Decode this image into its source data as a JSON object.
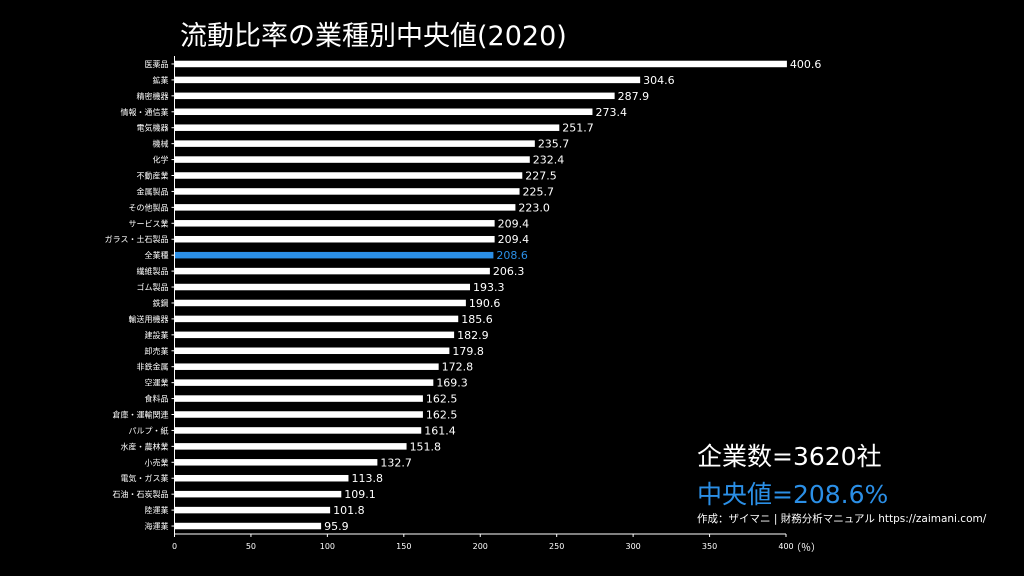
{
  "title": "流動比率の業種別中央値(2020)",
  "summary": {
    "company_count": "企業数=3620社",
    "median": "中央値=208.6%"
  },
  "credit": "作成：ザイマニ | 財務分析マニュアル https://zaimani.com/",
  "colors": {
    "bar": "#ffffff",
    "highlight": "#2b8fe6",
    "background": "#000000",
    "text": "#ffffff"
  },
  "chart_data": {
    "type": "bar",
    "orientation": "horizontal",
    "xlabel": "（％）",
    "xlim": [
      0,
      400
    ],
    "xticks": [
      0,
      50,
      100,
      150,
      200,
      250,
      300,
      350,
      400
    ],
    "highlight_category": "全業種",
    "categories": [
      "医薬品",
      "鉱業",
      "精密機器",
      "情報・通信業",
      "電気機器",
      "機械",
      "化学",
      "不動産業",
      "金属製品",
      "その他製品",
      "サービス業",
      "ガラス・土石製品",
      "全業種",
      "繊維製品",
      "ゴム製品",
      "鉄鋼",
      "輸送用機器",
      "建設業",
      "卸売業",
      "非鉄金属",
      "空運業",
      "食料品",
      "倉庫・運輸関連",
      "パルプ・紙",
      "水産・農林業",
      "小売業",
      "電気・ガス業",
      "石油・石炭製品",
      "陸運業",
      "海運業"
    ],
    "values": [
      400.6,
      304.6,
      287.9,
      273.4,
      251.7,
      235.7,
      232.4,
      227.5,
      225.7,
      223.0,
      209.4,
      209.4,
      208.6,
      206.3,
      193.3,
      190.6,
      185.6,
      182.9,
      179.8,
      172.8,
      169.3,
      162.5,
      162.5,
      161.4,
      151.8,
      132.7,
      113.8,
      109.1,
      101.8,
      95.9
    ]
  }
}
